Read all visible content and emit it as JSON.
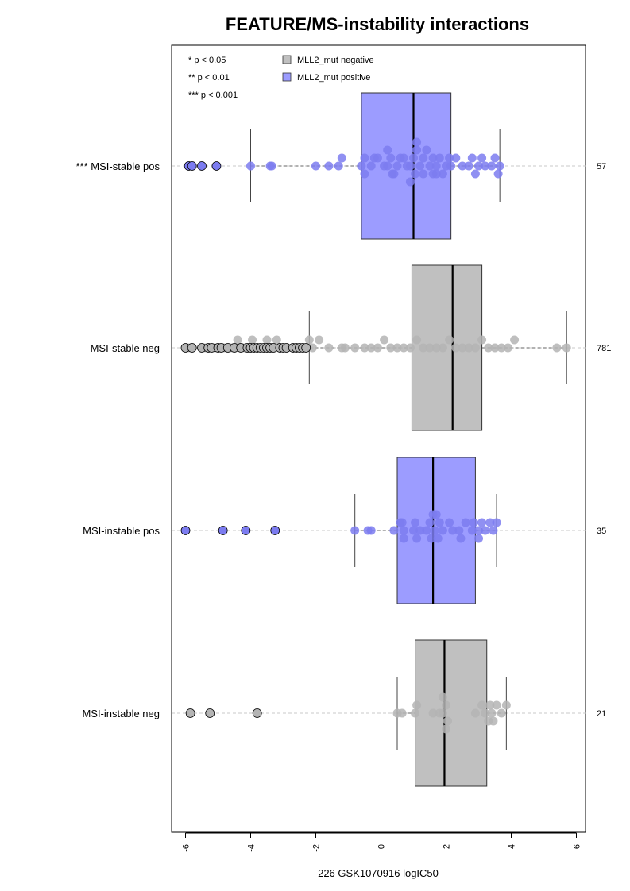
{
  "chart_data": {
    "type": "box",
    "title": "FEATURE/MS-instability interactions",
    "xlabel": "226 GSK1070916 logIC50",
    "xlim": [
      -6.4,
      6.2
    ],
    "x_ticks": [
      "-6",
      "-4",
      "-2",
      "0",
      "2",
      "4",
      "6"
    ],
    "grid": false,
    "significance_legend": [
      "* p < 0.05",
      "** p < 0.01",
      "*** p < 0.001"
    ],
    "legend": [
      {
        "label": "MLL2_mut negative",
        "color": "#c0c0c0"
      },
      {
        "label": "MLL2_mut positive",
        "color": "#9c9cff"
      }
    ],
    "legend_position": "top-left",
    "colors": {
      "negative_fill": "#c0c0c0",
      "positive_fill": "#9c9cff",
      "negative_point": "#b4b4b4",
      "positive_point": "#7c7cf0"
    },
    "groups": [
      {
        "label": "*** MSI-stable pos",
        "n": "57",
        "mutation": "positive",
        "box": {
          "whisker_low": -4.0,
          "q1": -0.6,
          "median": 1.0,
          "q3": 2.15,
          "whisker_high": 3.65
        },
        "outliers": [
          -5.9,
          -5.8,
          -5.5,
          -5.05
        ],
        "points": [
          -5.8,
          -5.5,
          -4.0,
          -3.4,
          -3.35,
          -2.0,
          -1.6,
          -1.3,
          -1.2,
          -0.6,
          -0.5,
          -0.3,
          -0.2,
          0.1,
          0.2,
          0.3,
          0.35,
          0.5,
          0.6,
          0.8,
          0.9,
          1.0,
          1.05,
          1.1,
          1.2,
          1.3,
          1.5,
          1.6,
          1.7,
          1.8,
          2.0,
          2.1,
          2.15,
          2.5,
          2.7,
          2.8,
          3.0,
          3.2,
          3.4,
          3.5,
          3.6,
          3.65,
          -0.5,
          0.2,
          0.7,
          1.3,
          1.6,
          1.9,
          3.1,
          0.9,
          1.4,
          1.7,
          2.3,
          -0.1,
          0.4,
          1.1,
          2.9
        ]
      },
      {
        "label": "MSI-stable neg",
        "n": "781",
        "mutation": "negative",
        "box": {
          "whisker_low": -2.2,
          "q1": 0.95,
          "median": 2.2,
          "q3": 3.1,
          "whisker_high": 5.7
        },
        "outliers": [
          -6.0,
          -5.8,
          -5.5,
          -5.3,
          -5.2,
          -5.0,
          -4.9,
          -4.7,
          -4.5,
          -4.3,
          -4.1,
          -4.0,
          -3.9,
          -3.8,
          -3.7,
          -3.6,
          -3.5,
          -3.4,
          -3.3,
          -3.1,
          -3.0,
          -2.9,
          -2.7,
          -2.6,
          -2.5,
          -2.4,
          -2.3
        ],
        "points": [
          -5.9,
          -5.4,
          -5.1,
          -4.8,
          -4.6,
          -4.4,
          -4.2,
          -4.0,
          -3.95,
          -3.8,
          -3.6,
          -3.5,
          -3.3,
          -3.2,
          -2.9,
          -2.7,
          -2.5,
          -2.3,
          -2.2,
          -2.1,
          -1.9,
          -1.6,
          -1.2,
          -1.1,
          -0.8,
          -0.5,
          -0.3,
          -0.1,
          0.1,
          0.3,
          0.5,
          0.7,
          0.9,
          1.1,
          1.3,
          1.5,
          1.7,
          1.9,
          2.1,
          2.3,
          2.5,
          2.7,
          2.9,
          3.1,
          3.3,
          3.5,
          3.7,
          3.9,
          4.1,
          5.4,
          5.7
        ]
      },
      {
        "label": "MSI-instable pos",
        "n": "35",
        "mutation": "positive",
        "box": {
          "whisker_low": -0.8,
          "q1": 0.5,
          "median": 1.6,
          "q3": 2.9,
          "whisker_high": 3.55
        },
        "outliers": [
          -6.0,
          -4.85,
          -4.15,
          -3.25
        ],
        "points": [
          -0.8,
          -0.4,
          0.4,
          0.6,
          0.7,
          1.0,
          1.05,
          1.2,
          1.4,
          1.5,
          1.55,
          1.6,
          1.65,
          1.8,
          1.9,
          2.1,
          2.2,
          2.4,
          2.6,
          2.8,
          2.85,
          3.0,
          3.1,
          3.2,
          3.35,
          3.45,
          3.55,
          -0.3,
          0.65,
          1.1,
          1.75,
          2.45,
          0.7,
          1.7,
          3.0
        ]
      },
      {
        "label": "MSI-instable neg",
        "n": "21",
        "mutation": "negative",
        "box": {
          "whisker_low": 0.5,
          "q1": 1.05,
          "median": 1.95,
          "q3": 3.25,
          "whisker_high": 3.85
        },
        "outliers": [
          -5.85,
          -5.25,
          -3.8
        ],
        "points": [
          0.5,
          0.65,
          1.05,
          1.1,
          1.6,
          1.8,
          1.9,
          2.0,
          2.05,
          2.9,
          3.1,
          3.2,
          3.35,
          3.4,
          3.55,
          3.7,
          3.85,
          1.9,
          2.0,
          3.3,
          3.45
        ]
      }
    ]
  }
}
